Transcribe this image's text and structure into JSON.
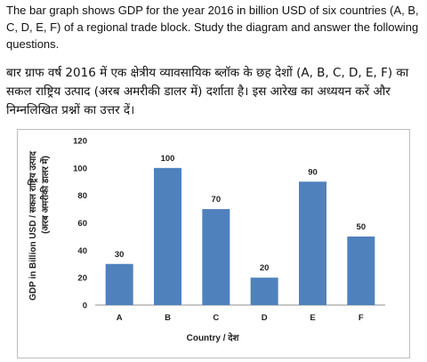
{
  "question": {
    "english": "The bar graph shows GDP for the year 2016 in billion USD of six countries (A, B, C, D, E, F) of a regional trade block. Study the diagram and answer the following questions.",
    "hindi": "बार ग्राफ वर्ष 2016 में एक क्षेत्रीय व्यावसायिक ब्लॉक के छह देशों (A, B, C, D, E, F) का सकल राष्ट्रिय उत्पाद (अरब अमरीकी डालर में) दर्शाता है। इस आरेख का अध्ययन करें और निम्नलिखित प्रश्नों का उत्तर दें।"
  },
  "chart_data": {
    "type": "bar",
    "categories": [
      "A",
      "B",
      "C",
      "D",
      "E",
      "F"
    ],
    "values": [
      30,
      100,
      70,
      20,
      90,
      50
    ],
    "xlabel": "Country / देश",
    "ylabel_line1": "GDP in Billion USD / सकल राष्ट्रिय उत्पाद",
    "ylabel_line2": "(अरब अमरीकी डालर में)",
    "ylim": [
      0,
      120
    ],
    "yticks": [
      0,
      20,
      40,
      60,
      80,
      100,
      120
    ],
    "grid": false,
    "legend": "none",
    "bar_color": "#4f81bd"
  }
}
